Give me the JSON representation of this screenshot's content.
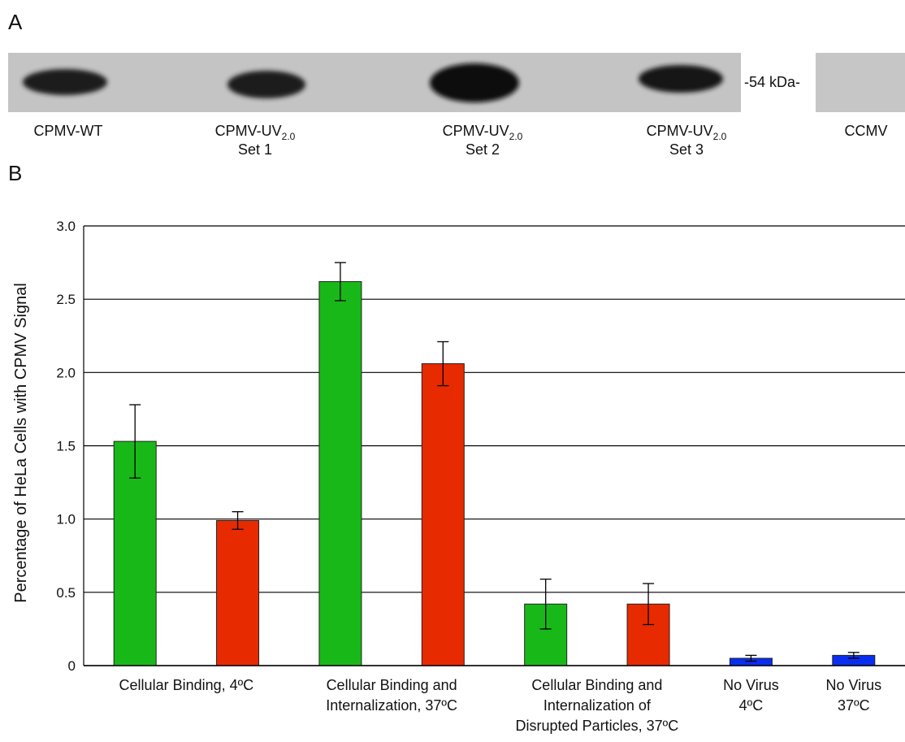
{
  "panel_a": {
    "label": "A",
    "marker": "-54 kDa-",
    "lanes": [
      {
        "name": "CPMV-WT"
      },
      {
        "name": "CPMV-UV",
        "sub": "2.0",
        "line2": "Set 1"
      },
      {
        "name": "CPMV-UV",
        "sub": "2.0",
        "line2": "Set 2"
      },
      {
        "name": "CPMV-UV",
        "sub": "2.0",
        "line2": "Set 3"
      },
      {
        "name": "CCMV"
      }
    ]
  },
  "chart_data": {
    "type": "bar",
    "panel_label": "B",
    "ylabel": "Percentage of HeLa Cells with CPMV Signal",
    "categories": [
      "Cellular Binding, 4ºC",
      "Cellular Binding and\nInternalization, 37ºC",
      "Cellular Binding and\nInternalization of\nDisrupted Particles, 37ºC",
      "No Virus\n4ºC",
      "No Virus\n37ºC"
    ],
    "series": [
      {
        "color": "#19b819",
        "values": [
          1.53,
          2.62,
          0.42,
          null,
          null
        ],
        "errors": [
          0.25,
          0.13,
          0.17,
          null,
          null
        ]
      },
      {
        "color": "#e82a00",
        "values": [
          0.99,
          2.06,
          0.42,
          null,
          null
        ],
        "errors": [
          0.06,
          0.15,
          0.14,
          null,
          null
        ]
      },
      {
        "color": "#0a2ef0",
        "values": [
          null,
          null,
          null,
          0.05,
          0.07
        ],
        "errors": [
          null,
          null,
          null,
          0.02,
          0.02
        ]
      }
    ],
    "ylim": [
      0,
      3
    ],
    "yticks": [
      0,
      0.5,
      {
        "value": 1,
        "label": "1.0"
      },
      1.5,
      {
        "value": 2,
        "label": "2.0"
      },
      2.5,
      {
        "value": 3,
        "label": "3.0"
      }
    ],
    "grid": true
  }
}
